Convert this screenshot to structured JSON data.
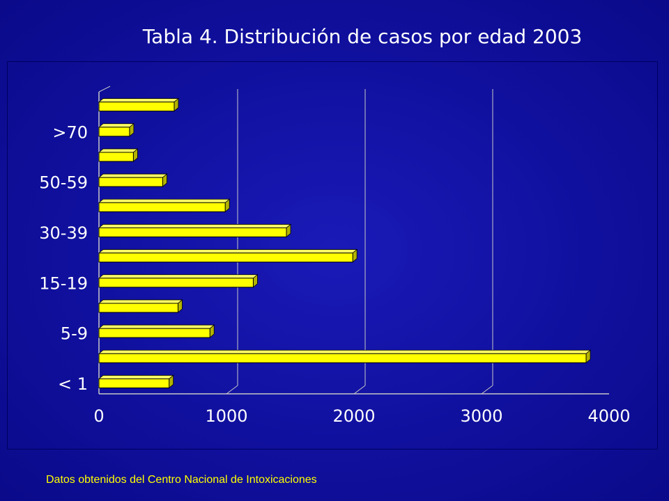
{
  "title": "Tabla 4. Distribución de casos por edad 2003",
  "footnote": "Datos obtenidos del Centro Nacional de Intoxicaciones",
  "colors": {
    "background": "#1212a6",
    "bar_face": "#ffff00",
    "bar_side": "#b3b300",
    "axis": "#c8c8c8",
    "tick_text": "#ffffff",
    "footnote": "#ffff00"
  },
  "chart_data": {
    "type": "bar",
    "orientation": "horizontal",
    "style": "3d",
    "title": "Tabla 4. Distribución de casos por edad 2003",
    "xlabel": "",
    "ylabel": "",
    "xlim": [
      0,
      4000
    ],
    "x_ticks": [
      "0",
      "1000",
      "2000",
      "3000",
      "4000"
    ],
    "grid": true,
    "legend": "none",
    "categories": [
      "< 1",
      "",
      "5-9",
      "",
      "15-19",
      "",
      "30-39",
      "",
      "50-59",
      "",
      ">70",
      ""
    ],
    "values": [
      550,
      3820,
      870,
      620,
      1210,
      1990,
      1470,
      990,
      500,
      270,
      240,
      590
    ]
  }
}
